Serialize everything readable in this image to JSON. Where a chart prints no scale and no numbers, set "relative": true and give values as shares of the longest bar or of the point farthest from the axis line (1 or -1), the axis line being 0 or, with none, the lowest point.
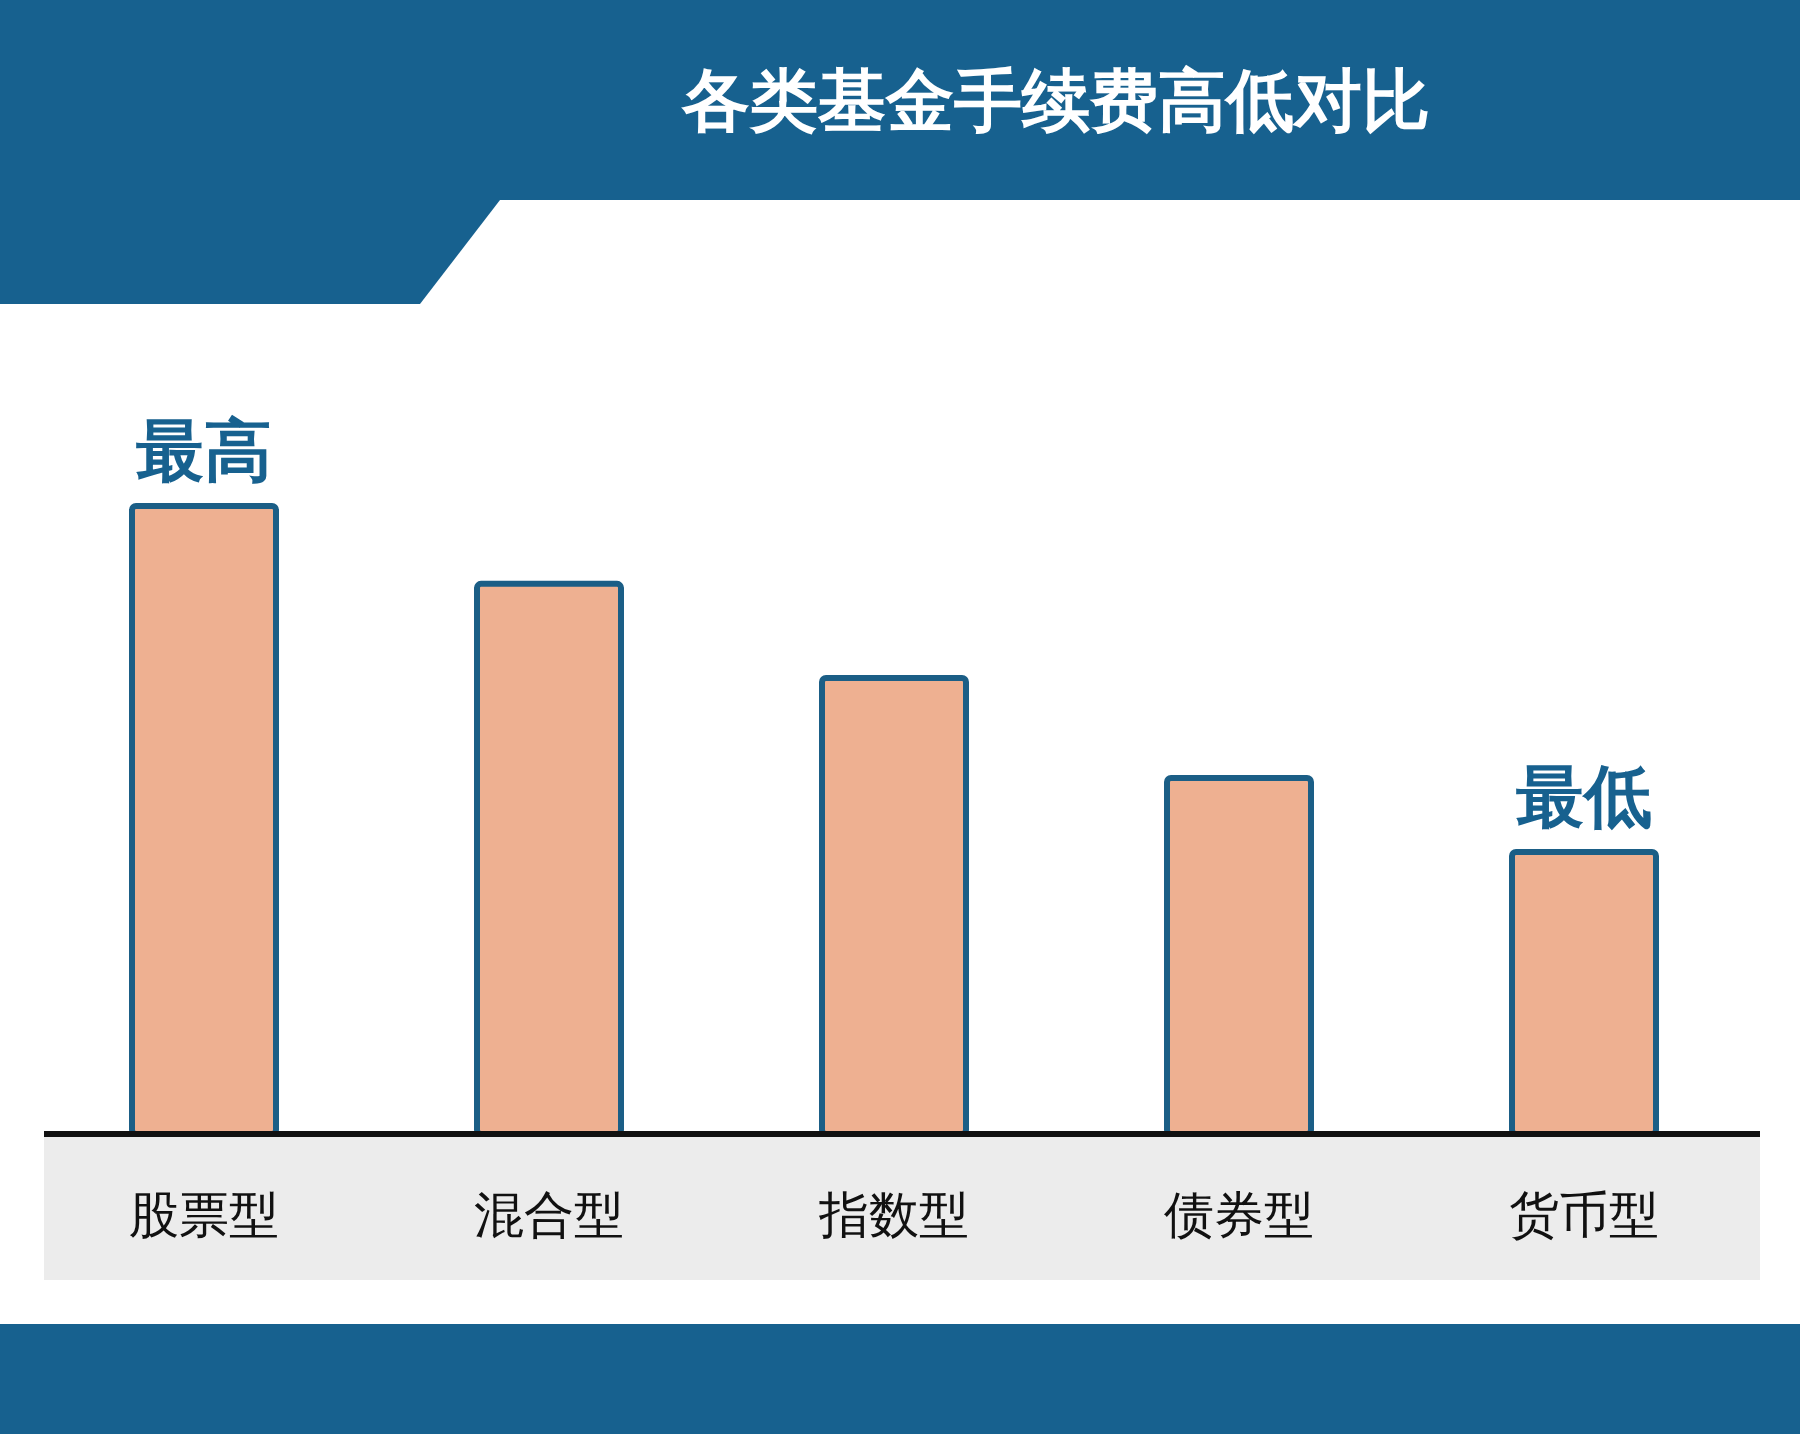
{
  "chart_data": {
    "type": "bar",
    "title": "各类基金手续费高低对比",
    "categories": [
      "股票型",
      "混合型",
      "指数型",
      "债券型",
      "货币型"
    ],
    "values": [
      1,
      0.876,
      0.726,
      0.567,
      0.449
    ],
    "relative": true,
    "color": "#eeb091",
    "annotations": [
      {
        "text": "最高",
        "x": "股票型",
        "y": 1
      },
      {
        "text": "最低",
        "x": "货币型",
        "y": 0.449
      }
    ]
  }
}
